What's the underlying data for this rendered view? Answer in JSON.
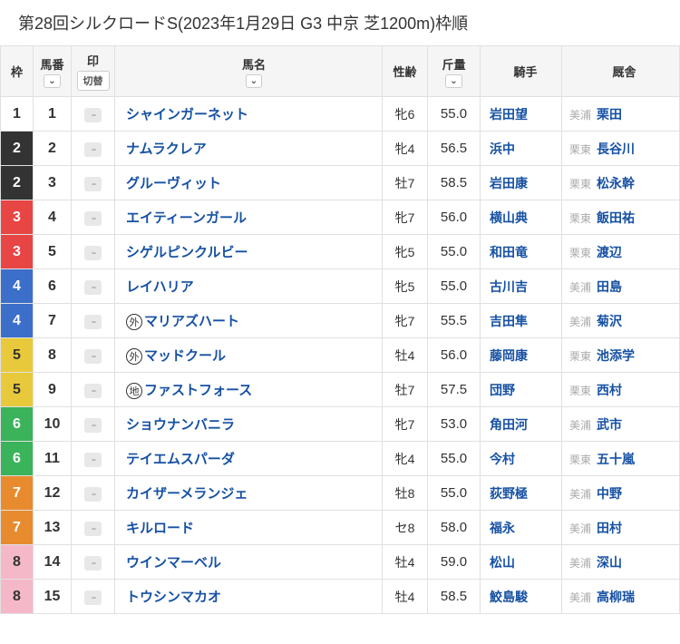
{
  "title": "第28回シルクロードS(2023年1月29日 G3 中京 芝1200m)枠順",
  "headers": {
    "waku": "枠",
    "num": "馬番",
    "mark": "印",
    "mark_switch": "切替",
    "horse": "馬名",
    "sex": "性齢",
    "weight": "斤量",
    "jockey": "騎手",
    "trainer": "厩舎"
  },
  "sort_icon": "⌄",
  "mark_placeholder": "--",
  "waku_colors": {
    "1": {
      "bg": "#ffffff",
      "fg": "#333333"
    },
    "2": {
      "bg": "#333333",
      "fg": "#ffffff"
    },
    "3": {
      "bg": "#e84545",
      "fg": "#ffffff"
    },
    "4": {
      "bg": "#3b6fc9",
      "fg": "#ffffff"
    },
    "5": {
      "bg": "#e8c93b",
      "fg": "#333333"
    },
    "6": {
      "bg": "#3bb35a",
      "fg": "#ffffff"
    },
    "7": {
      "bg": "#e88b2e",
      "fg": "#ffffff"
    },
    "8": {
      "bg": "#f5b8c9",
      "fg": "#333333"
    }
  },
  "rows": [
    {
      "waku": "1",
      "num": "1",
      "prefix": "",
      "horse": "シャインガーネット",
      "sex": "牝6",
      "wt": "55.0",
      "jockey": "岩田望",
      "region": "美浦",
      "trainer": "栗田"
    },
    {
      "waku": "2",
      "num": "2",
      "prefix": "",
      "horse": "ナムラクレア",
      "sex": "牝4",
      "wt": "56.5",
      "jockey": "浜中",
      "region": "栗東",
      "trainer": "長谷川"
    },
    {
      "waku": "2",
      "num": "3",
      "prefix": "",
      "horse": "グルーヴィット",
      "sex": "牡7",
      "wt": "58.5",
      "jockey": "岩田康",
      "region": "栗東",
      "trainer": "松永幹"
    },
    {
      "waku": "3",
      "num": "4",
      "prefix": "",
      "horse": "エイティーンガール",
      "sex": "牝7",
      "wt": "56.0",
      "jockey": "横山典",
      "region": "栗東",
      "trainer": "飯田祐"
    },
    {
      "waku": "3",
      "num": "5",
      "prefix": "",
      "horse": "シゲルピンクルビー",
      "sex": "牝5",
      "wt": "55.0",
      "jockey": "和田竜",
      "region": "栗東",
      "trainer": "渡辺"
    },
    {
      "waku": "4",
      "num": "6",
      "prefix": "",
      "horse": "レイハリア",
      "sex": "牝5",
      "wt": "55.0",
      "jockey": "古川吉",
      "region": "美浦",
      "trainer": "田島"
    },
    {
      "waku": "4",
      "num": "7",
      "prefix": "外",
      "horse": "マリアズハート",
      "sex": "牝7",
      "wt": "55.5",
      "jockey": "吉田隼",
      "region": "美浦",
      "trainer": "菊沢"
    },
    {
      "waku": "5",
      "num": "8",
      "prefix": "外",
      "horse": "マッドクール",
      "sex": "牡4",
      "wt": "56.0",
      "jockey": "藤岡康",
      "region": "栗東",
      "trainer": "池添学"
    },
    {
      "waku": "5",
      "num": "9",
      "prefix": "地",
      "horse": "ファストフォース",
      "sex": "牡7",
      "wt": "57.5",
      "jockey": "団野",
      "region": "栗東",
      "trainer": "西村"
    },
    {
      "waku": "6",
      "num": "10",
      "prefix": "",
      "horse": "ショウナンバニラ",
      "sex": "牝7",
      "wt": "53.0",
      "jockey": "角田河",
      "region": "美浦",
      "trainer": "武市"
    },
    {
      "waku": "6",
      "num": "11",
      "prefix": "",
      "horse": "テイエムスパーダ",
      "sex": "牝4",
      "wt": "55.0",
      "jockey": "今村",
      "region": "栗東",
      "trainer": "五十嵐"
    },
    {
      "waku": "7",
      "num": "12",
      "prefix": "",
      "horse": "カイザーメランジェ",
      "sex": "牡8",
      "wt": "55.0",
      "jockey": "荻野極",
      "region": "美浦",
      "trainer": "中野"
    },
    {
      "waku": "7",
      "num": "13",
      "prefix": "",
      "horse": "キルロード",
      "sex": "セ8",
      "wt": "58.0",
      "jockey": "福永",
      "region": "美浦",
      "trainer": "田村"
    },
    {
      "waku": "8",
      "num": "14",
      "prefix": "",
      "horse": "ウインマーベル",
      "sex": "牡4",
      "wt": "59.0",
      "jockey": "松山",
      "region": "美浦",
      "trainer": "深山"
    },
    {
      "waku": "8",
      "num": "15",
      "prefix": "",
      "horse": "トウシンマカオ",
      "sex": "牡4",
      "wt": "58.5",
      "jockey": "鮫島駿",
      "region": "美浦",
      "trainer": "高柳瑞"
    }
  ]
}
